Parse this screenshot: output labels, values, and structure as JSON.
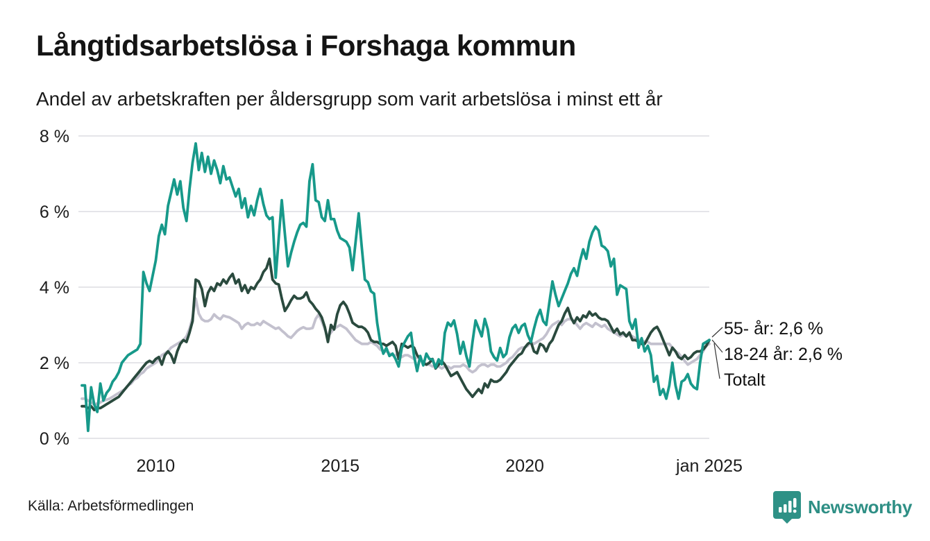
{
  "title": "Långtidsarbetslösa i Forshaga kommun",
  "subtitle": "Andel av arbetskraften per åldersgrupp som varit arbetslösa i minst ett år",
  "source": "Källa: Arbetsförmedlingen",
  "logo_text": "Newsworthy",
  "colors": {
    "teal_line": "#17998a",
    "dark_green_line": "#2a4a3e",
    "gray_line": "#c3c1ce",
    "gridline": "#e5e5e9",
    "text": "#1c1c1c",
    "logo_teal": "#2e8f85",
    "leader_line": "#333333"
  },
  "end_labels": [
    {
      "text": "55- år: 2,6 %"
    },
    {
      "text": "18-24 år: 2,6 %"
    },
    {
      "text": "Totalt"
    }
  ],
  "chart_data": {
    "type": "line",
    "title": "Långtidsarbetslösa i Forshaga kommun",
    "subtitle": "Andel av arbetskraften per åldersgrupp som varit arbetslösa i minst ett år",
    "unit": "% av arbetskraften",
    "x_start": "2008-01",
    "x_end": "2025-01",
    "frequency": "monthly",
    "ylim": [
      0,
      8
    ],
    "grid": "horizontal",
    "legend_position": "end-of-line-labels",
    "y_axis": {
      "ticks": [
        {
          "value": 0,
          "label": "0 %"
        },
        {
          "value": 2,
          "label": "2 %"
        },
        {
          "value": 4,
          "label": "4 %"
        },
        {
          "value": 6,
          "label": "6 %"
        },
        {
          "value": 8,
          "label": "8 %"
        }
      ]
    },
    "x_axis": {
      "ticks": [
        {
          "index": 24,
          "label": "2010"
        },
        {
          "index": 84,
          "label": "2015"
        },
        {
          "index": 144,
          "label": "2020"
        },
        {
          "index": 204,
          "label": "jan 2025"
        }
      ]
    },
    "series": [
      {
        "name": "Totalt",
        "color": "#c3c1ce",
        "end_value": 2.5,
        "values": [
          1.05,
          1.05,
          1.0,
          0.95,
          0.9,
          0.92,
          0.95,
          1.0,
          1.02,
          1.05,
          1.1,
          1.15,
          1.2,
          1.25,
          1.3,
          1.4,
          1.45,
          1.55,
          1.6,
          1.7,
          1.75,
          1.85,
          1.9,
          1.95,
          2.0,
          2.1,
          2.2,
          2.25,
          2.3,
          2.4,
          2.45,
          2.5,
          2.55,
          2.6,
          2.7,
          2.9,
          3.2,
          3.7,
          3.3,
          3.15,
          3.1,
          3.1,
          3.15,
          3.28,
          3.2,
          3.15,
          3.25,
          3.22,
          3.2,
          3.15,
          3.1,
          3.05,
          2.9,
          3.0,
          3.05,
          3.0,
          3.0,
          3.05,
          3.0,
          3.1,
          3.05,
          3.0,
          2.95,
          2.9,
          2.93,
          2.85,
          2.78,
          2.7,
          2.66,
          2.75,
          2.84,
          2.9,
          2.94,
          2.9,
          2.9,
          2.92,
          3.16,
          3.28,
          3.1,
          2.88,
          2.7,
          2.8,
          2.9,
          2.95,
          3.0,
          2.95,
          2.9,
          2.8,
          2.7,
          2.6,
          2.55,
          2.5,
          2.5,
          2.5,
          2.55,
          2.5,
          2.45,
          2.35,
          2.3,
          2.3,
          2.25,
          2.2,
          2.2,
          2.25,
          2.15,
          2.2,
          2.2,
          2.15,
          2.1,
          2.15,
          2.1,
          2.0,
          1.95,
          1.95,
          1.9,
          1.95,
          1.9,
          1.85,
          1.9,
          1.9,
          1.85,
          1.9,
          1.9,
          1.9,
          1.95,
          1.9,
          1.8,
          1.75,
          1.8,
          1.9,
          1.95,
          1.95,
          1.9,
          1.95,
          1.95,
          1.9,
          1.9,
          1.95,
          2.0,
          2.1,
          2.15,
          2.25,
          2.35,
          2.4,
          2.4,
          2.45,
          2.55,
          2.5,
          2.55,
          2.6,
          2.65,
          2.75,
          2.9,
          3.0,
          3.05,
          3.1,
          3.0,
          3.1,
          3.15,
          3.15,
          3.1,
          3.0,
          2.9,
          3.0,
          3.05,
          3.0,
          2.95,
          3.05,
          3.0,
          2.95,
          3.0,
          2.9,
          2.85,
          2.8,
          2.75,
          2.7,
          2.75,
          2.7,
          2.75,
          2.7,
          2.65,
          2.6,
          2.6,
          2.55,
          2.55,
          2.5,
          2.5,
          2.5,
          2.5,
          2.5,
          2.5,
          2.5,
          2.4,
          2.3,
          2.25,
          2.15,
          2.05,
          1.95,
          2.0,
          2.05,
          2.1,
          2.2,
          2.3,
          2.45,
          2.5
        ]
      },
      {
        "name": "55- år",
        "color": "#2a4a3e",
        "end_value": 2.6,
        "values": [
          0.85,
          0.85,
          0.8,
          0.85,
          0.75,
          0.8,
          0.8,
          0.85,
          0.9,
          0.95,
          1.0,
          1.05,
          1.1,
          1.2,
          1.3,
          1.4,
          1.5,
          1.6,
          1.7,
          1.8,
          1.9,
          2.0,
          2.05,
          2.0,
          2.1,
          2.15,
          1.95,
          2.2,
          2.3,
          2.2,
          2.0,
          2.3,
          2.5,
          2.6,
          2.55,
          2.8,
          3.1,
          4.2,
          4.15,
          3.95,
          3.5,
          3.85,
          4.0,
          3.9,
          4.1,
          4.05,
          4.2,
          4.1,
          4.25,
          4.35,
          4.1,
          4.2,
          3.9,
          4.05,
          3.85,
          4.0,
          3.95,
          4.1,
          4.2,
          4.4,
          4.5,
          4.75,
          4.2,
          4.1,
          4.07,
          3.7,
          3.37,
          3.5,
          3.65,
          3.77,
          3.7,
          3.7,
          3.74,
          3.86,
          3.64,
          3.55,
          3.43,
          3.34,
          3.2,
          2.94,
          2.55,
          3.0,
          2.88,
          3.28,
          3.52,
          3.61,
          3.5,
          3.3,
          3.06,
          3.0,
          2.95,
          2.95,
          2.9,
          2.8,
          2.6,
          2.55,
          2.55,
          2.5,
          2.5,
          2.45,
          2.5,
          2.55,
          2.45,
          2.1,
          2.5,
          2.45,
          2.4,
          2.45,
          2.4,
          2.2,
          2.1,
          2.0,
          1.95,
          2.0,
          2.1,
          1.85,
          1.95,
          2.05,
          1.95,
          1.8,
          1.65,
          1.7,
          1.75,
          1.6,
          1.45,
          1.3,
          1.2,
          1.1,
          1.2,
          1.3,
          1.2,
          1.45,
          1.35,
          1.55,
          1.5,
          1.5,
          1.55,
          1.65,
          1.75,
          1.9,
          2.0,
          2.1,
          2.2,
          2.25,
          2.4,
          2.5,
          2.55,
          2.3,
          2.25,
          2.5,
          2.45,
          2.3,
          2.5,
          2.6,
          2.8,
          3.0,
          3.1,
          3.3,
          3.45,
          3.2,
          3.05,
          3.2,
          3.1,
          3.25,
          3.2,
          3.35,
          3.25,
          3.3,
          3.2,
          3.15,
          3.15,
          3.1,
          2.95,
          2.8,
          2.9,
          2.75,
          2.8,
          2.7,
          2.8,
          2.6,
          2.6,
          2.55,
          2.5,
          2.5,
          2.65,
          2.8,
          2.9,
          2.95,
          2.8,
          2.6,
          2.4,
          2.2,
          2.4,
          2.3,
          2.15,
          2.1,
          2.2,
          2.1,
          2.15,
          2.25,
          2.3,
          2.3,
          2.35,
          2.45,
          2.6
        ]
      },
      {
        "name": "18-24 år",
        "color": "#17998a",
        "end_value": 2.6,
        "values": [
          1.4,
          1.4,
          0.2,
          1.35,
          0.9,
          0.7,
          1.45,
          1.0,
          1.2,
          1.3,
          1.5,
          1.6,
          1.75,
          2.0,
          2.1,
          2.2,
          2.25,
          2.3,
          2.35,
          2.5,
          4.4,
          4.1,
          3.9,
          4.3,
          4.7,
          5.35,
          5.65,
          5.4,
          6.15,
          6.5,
          6.85,
          6.45,
          6.8,
          6.1,
          5.75,
          6.6,
          7.3,
          7.8,
          7.1,
          7.55,
          7.05,
          7.45,
          7.0,
          7.35,
          7.1,
          6.75,
          7.2,
          6.85,
          6.9,
          6.65,
          6.4,
          6.6,
          6.1,
          6.35,
          5.85,
          6.15,
          5.9,
          6.3,
          6.6,
          6.2,
          5.9,
          5.8,
          5.85,
          4.25,
          5.3,
          6.3,
          5.4,
          4.55,
          4.9,
          5.2,
          5.45,
          5.65,
          5.7,
          5.6,
          6.8,
          7.25,
          6.3,
          6.25,
          5.85,
          5.75,
          6.3,
          5.8,
          5.8,
          5.5,
          5.3,
          5.25,
          5.2,
          5.05,
          4.45,
          5.2,
          5.95,
          5.05,
          4.2,
          4.13,
          3.89,
          3.83,
          3.06,
          2.55,
          2.24,
          2.39,
          2.18,
          2.24,
          2.1,
          1.9,
          2.39,
          2.55,
          2.7,
          2.79,
          2.18,
          1.78,
          2.18,
          1.93,
          2.24,
          2.1,
          2.09,
          1.87,
          2.09,
          1.96,
          2.79,
          3.06,
          2.97,
          3.12,
          2.76,
          2.24,
          2.55,
          2.18,
          1.9,
          2.55,
          3.12,
          2.91,
          2.7,
          3.16,
          2.88,
          2.3,
          2.15,
          2.06,
          2.39,
          2.15,
          2.24,
          2.67,
          2.91,
          3.0,
          2.79,
          2.97,
          3.03,
          2.73,
          2.55,
          2.9,
          3.2,
          3.4,
          3.1,
          3.0,
          3.6,
          4.15,
          3.8,
          3.5,
          3.7,
          3.9,
          4.1,
          4.35,
          4.5,
          4.3,
          4.7,
          5.0,
          4.75,
          5.2,
          5.45,
          5.6,
          5.5,
          5.1,
          5.05,
          4.95,
          4.55,
          4.75,
          3.8,
          4.05,
          4.0,
          3.95,
          3.1,
          2.9,
          3.15,
          2.4,
          2.65,
          2.3,
          2.45,
          2.2,
          1.5,
          1.65,
          1.15,
          1.3,
          1.05,
          1.4,
          2.0,
          1.4,
          1.05,
          1.5,
          1.55,
          1.7,
          1.45,
          1.35,
          1.3,
          2.0,
          2.5,
          2.55,
          2.6
        ]
      }
    ]
  }
}
